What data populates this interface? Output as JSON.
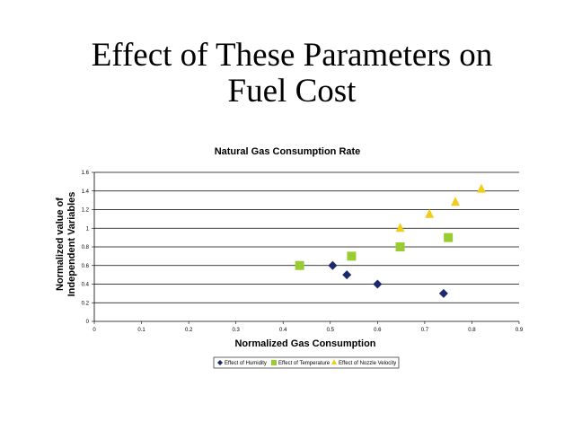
{
  "slide": {
    "title_line1": "Effect of These Parameters on",
    "title_line2": "Fuel Cost"
  },
  "chart_data": {
    "type": "scatter",
    "title": "Natural Gas Consumption Rate",
    "xlabel": "Normalized Gas Consumption",
    "ylabel_line1": "Normalized value of",
    "ylabel_line2": "Independent Variables",
    "xlim": [
      0,
      0.9
    ],
    "ylim": [
      0,
      1.6
    ],
    "x_ticks": [
      "0",
      "0.1",
      "0.2",
      "0.3",
      "0.4",
      "0.5",
      "0.6",
      "0.7",
      "0.8",
      "0.9"
    ],
    "y_ticks": [
      "0",
      "0.2",
      "0.4",
      "0.6",
      "0.8",
      "1",
      "1.2",
      "1.4",
      "1.6"
    ],
    "grid": "horizontal",
    "legend_position": "bottom",
    "series": [
      {
        "name": "Effect of Humidity",
        "marker": "diamond",
        "color": "#1a2a6c",
        "points": [
          [
            0.505,
            0.6
          ],
          [
            0.535,
            0.5
          ],
          [
            0.6,
            0.4
          ],
          [
            0.74,
            0.3
          ]
        ]
      },
      {
        "name": "Effect of Temperature",
        "marker": "square",
        "color": "#99cc33",
        "points": [
          [
            0.435,
            0.6
          ],
          [
            0.545,
            0.7
          ],
          [
            0.648,
            0.8
          ],
          [
            0.75,
            0.9
          ]
        ]
      },
      {
        "name": "Effect of Nozzle Velocity",
        "marker": "triangle",
        "color": "#f2cc1a",
        "points": [
          [
            0.648,
            1.0
          ],
          [
            0.71,
            1.15
          ],
          [
            0.765,
            1.28
          ],
          [
            0.82,
            1.42
          ]
        ]
      }
    ]
  }
}
